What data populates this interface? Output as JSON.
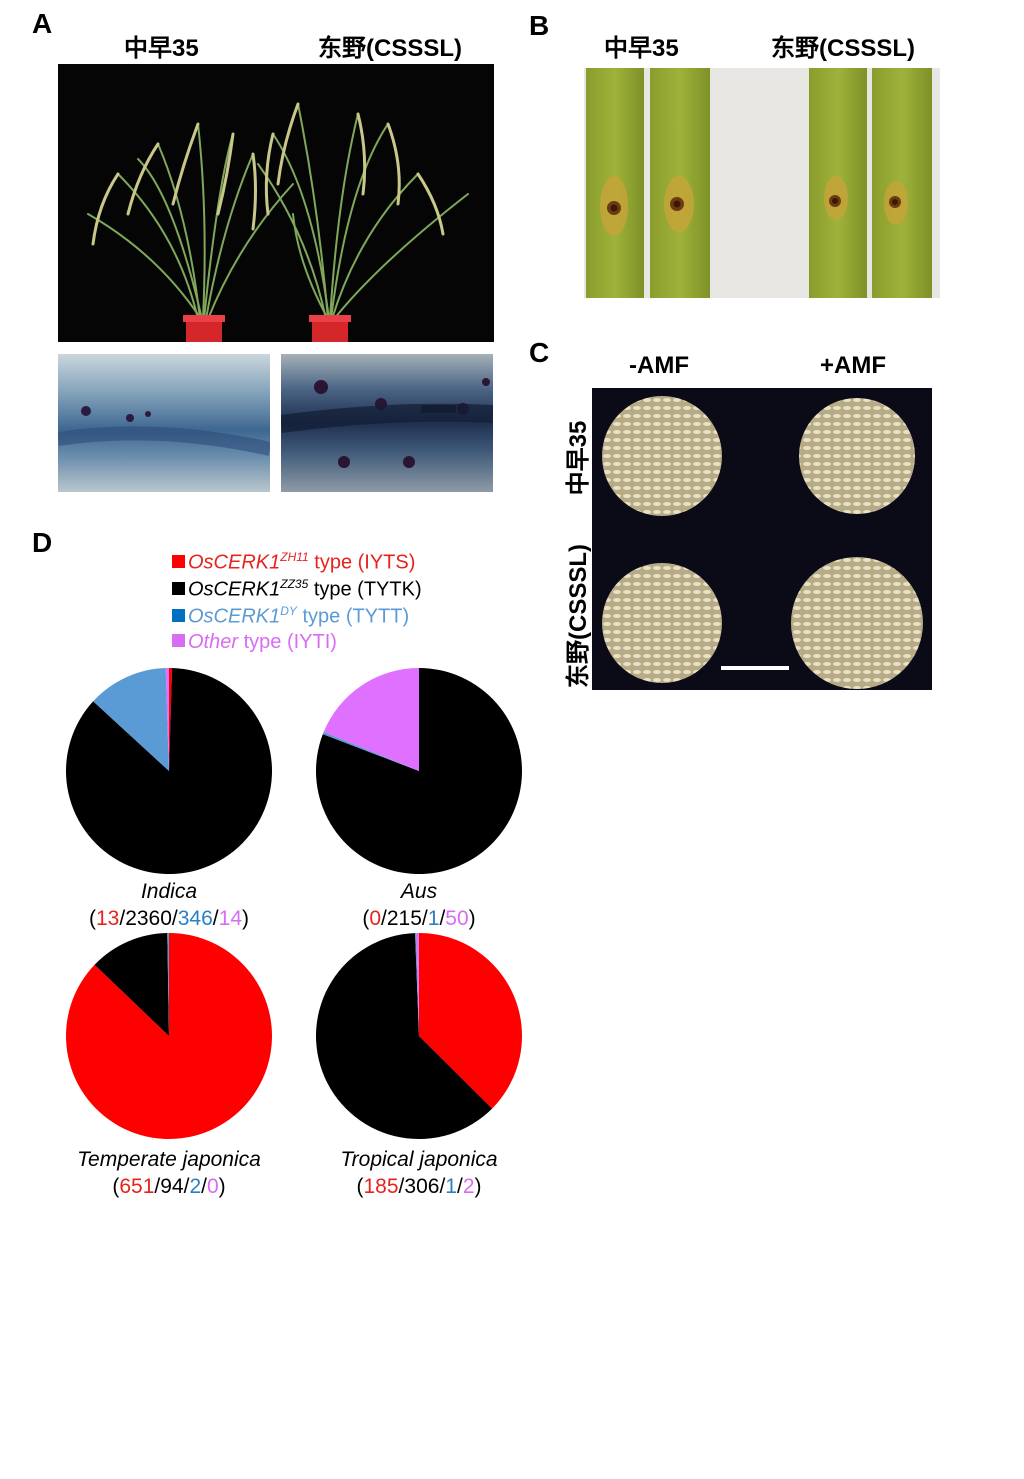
{
  "panels": {
    "A": {
      "letter": "A",
      "headers": [
        "中早35",
        "东野(CSSSL)"
      ]
    },
    "B": {
      "letter": "B",
      "headers": [
        "中早35",
        "东野(CSSSL)"
      ]
    },
    "C": {
      "letter": "C",
      "columns": [
        "-AMF",
        "+AMF"
      ],
      "rows": [
        "中早35",
        "东野(CSSSL)"
      ]
    },
    "D": {
      "letter": "D"
    }
  },
  "legend": [
    {
      "gene": "OsCERK1",
      "sup": "ZH11",
      "suffix": " type (IYTS)",
      "color": "#ff0000",
      "text_color": "#e8231e",
      "italic_all": false
    },
    {
      "gene": "OsCERK1",
      "sup": "ZZ35",
      "suffix": " type (TYTK)",
      "color": "#000000",
      "text_color": "#000000",
      "italic_all": false
    },
    {
      "gene": "OsCERK1",
      "sup": "DY",
      "suffix": " type (TYTT)",
      "color": "#0070c0",
      "text_color": "#5b9bd5",
      "italic_all": false
    },
    {
      "gene": "Other",
      "sup": "",
      "suffix": " type (IYTI)",
      "color": "#d86cf5",
      "text_color": "#d86cf5",
      "italic_all": false
    }
  ],
  "chart_data": [
    {
      "type": "pie",
      "group": "Indica",
      "counts": [
        13,
        2360,
        346,
        14
      ],
      "colors": [
        "#ff0000",
        "#000000",
        "#5b9bd5",
        "#e070ff"
      ]
    },
    {
      "type": "pie",
      "group": "Aus",
      "counts": [
        0,
        215,
        1,
        50
      ],
      "colors": [
        "#ff0000",
        "#000000",
        "#5b9bd5",
        "#e070ff"
      ]
    },
    {
      "type": "pie",
      "group": "Temperate japonica",
      "counts": [
        651,
        94,
        2,
        0
      ],
      "colors": [
        "#ff0000",
        "#000000",
        "#5b9bd5",
        "#e070ff"
      ]
    },
    {
      "type": "pie",
      "group": "Tropical japonica",
      "counts": [
        185,
        306,
        1,
        2
      ],
      "colors": [
        "#ff0000",
        "#000000",
        "#5b9bd5",
        "#e070ff"
      ]
    }
  ],
  "count_colors": [
    "#e8231e",
    "#000000",
    "#2b7fc4",
    "#d86cf5"
  ]
}
